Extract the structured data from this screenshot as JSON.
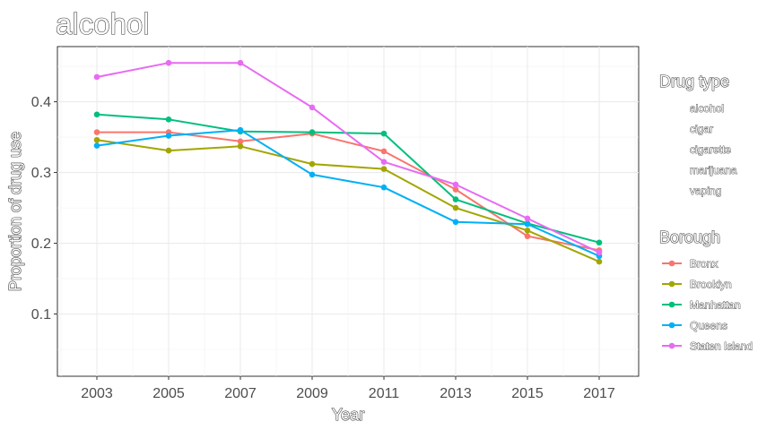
{
  "chart_data": {
    "type": "line",
    "title": "alcohol",
    "xlabel": "Year",
    "ylabel": "Proportion of drug use",
    "x": [
      2003,
      2005,
      2007,
      2009,
      2011,
      2013,
      2015,
      2017
    ],
    "xlim": [
      2001.9,
      2018.1
    ],
    "ylim": [
      0.012,
      0.478
    ],
    "y_ticks": [
      0.1,
      0.2,
      0.3,
      0.4
    ],
    "y_tick_labels": [
      "0.1",
      "0.2",
      "0.3",
      "0.4"
    ],
    "x_tick_labels": [
      "2003",
      "2005",
      "2007",
      "2009",
      "2011",
      "2013",
      "2015",
      "2017"
    ],
    "grid": true,
    "series": [
      {
        "name": "Bronx",
        "color": "#F8766D",
        "values": [
          0.357,
          0.357,
          0.344,
          0.355,
          0.33,
          0.276,
          0.21,
          0.19
        ]
      },
      {
        "name": "Brooklyn",
        "color": "#A3A500",
        "values": [
          0.346,
          0.331,
          0.337,
          0.312,
          0.305,
          0.25,
          0.218,
          0.174
        ]
      },
      {
        "name": "Manhattan",
        "color": "#00BF7D",
        "values": [
          0.382,
          0.375,
          0.358,
          0.357,
          0.355,
          0.262,
          0.228,
          0.201
        ]
      },
      {
        "name": "Queens",
        "color": "#00B0F6",
        "values": [
          0.338,
          0.352,
          0.36,
          0.297,
          0.279,
          0.23,
          0.227,
          0.182
        ]
      },
      {
        "name": "Staten Island",
        "color": "#E76BF3",
        "values": [
          0.435,
          0.455,
          0.455,
          0.392,
          0.315,
          0.283,
          0.235,
          0.187
        ]
      }
    ],
    "legends": [
      {
        "title": "Drug type",
        "items": [
          "alcohol",
          "cigar",
          "cigarette",
          "marijuana",
          "vaping"
        ]
      },
      {
        "title": "Borough",
        "items": [
          "Bronx",
          "Brooklyn",
          "Manhattan",
          "Queens",
          "Staten Island"
        ]
      }
    ],
    "legend_position": "right"
  }
}
